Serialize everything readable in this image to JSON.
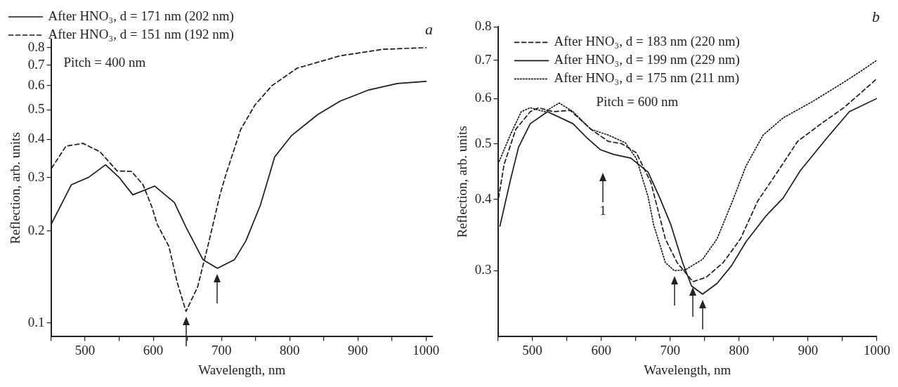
{
  "chart_data": [
    {
      "type": "line",
      "title": "a",
      "xlabel": "Wavelength, nm",
      "ylabel": "Reflection, arb. units",
      "log": "y",
      "xlim": [
        450,
        1010
      ],
      "ylim": [
        0.09,
        0.85
      ],
      "xticks": [
        {
          "value": 450,
          "label": null
        },
        500,
        {
          "value": 550,
          "label": null
        },
        600,
        {
          "value": 650,
          "label": null
        },
        700,
        {
          "value": 750,
          "label": null
        },
        800,
        {
          "value": 850,
          "label": null
        },
        900,
        {
          "value": 950,
          "label": null
        },
        1000
      ],
      "yticks": [
        0.1,
        0.2,
        0.3,
        0.4,
        0.5,
        0.6,
        0.7,
        0.8
      ],
      "legend": "top",
      "marker": "none",
      "annotations": [
        "Pitch = 400 nm"
      ],
      "series": [
        {
          "name": "After HNO₃, d = 171 nm (202 nm)",
          "color": "#1a1a1a",
          "line_style": "solid",
          "x": [
            450,
            480,
            505,
            530,
            550,
            570,
            602,
            631,
            648,
            673,
            694,
            719,
            736,
            757,
            769,
            778,
            803,
            841,
            874,
            916,
            958,
            1000
          ],
          "values": [
            0.21,
            0.284,
            0.3,
            0.33,
            0.3,
            0.263,
            0.281,
            0.248,
            0.206,
            0.161,
            0.151,
            0.161,
            0.186,
            0.243,
            0.299,
            0.35,
            0.412,
            0.482,
            0.534,
            0.581,
            0.61,
            0.62
          ]
        },
        {
          "name": "After HNO₃, d = 151 nm (192 nm)",
          "color": "#1a1a1a",
          "line_style": "dashed",
          "x": [
            451,
            472,
            497,
            522,
            547,
            568,
            585,
            598,
            606,
            623,
            635,
            648,
            665,
            682,
            698,
            707,
            728,
            749,
            774,
            811,
            874,
            937,
            1000
          ],
          "values": [
            0.322,
            0.38,
            0.388,
            0.364,
            0.315,
            0.314,
            0.284,
            0.24,
            0.21,
            0.178,
            0.136,
            0.109,
            0.131,
            0.186,
            0.264,
            0.309,
            0.43,
            0.518,
            0.6,
            0.685,
            0.752,
            0.79,
            0.8
          ]
        }
      ]
    },
    {
      "type": "line",
      "title": "b",
      "xlabel": "Wavelength, nm",
      "ylabel": "Reflection, arb. units",
      "log": "y",
      "xlim": [
        450,
        1000
      ],
      "ylim": [
        0.23,
        0.8
      ],
      "xticks": [
        {
          "value": 450,
          "label": null
        },
        500,
        {
          "value": 550,
          "label": null
        },
        600,
        {
          "value": 650,
          "label": null
        },
        700,
        {
          "value": 750,
          "label": null
        },
        800,
        {
          "value": 850,
          "label": null
        },
        900,
        {
          "value": 950,
          "label": null
        },
        1000
      ],
      "yticks": [
        0.3,
        0.4,
        0.5,
        0.6,
        0.7,
        0.8
      ],
      "legend": "top left",
      "marker": "none",
      "annotations": [
        "Pitch = 600 nm",
        "1"
      ],
      "series": [
        {
          "name": "After HNO₃, d = 183 nm (220 nm)",
          "color": "#1a1a1a",
          "line_style": "dashed",
          "x": [
            451,
            459,
            476,
            497,
            509,
            530,
            555,
            585,
            610,
            630,
            651,
            672,
            693,
            710,
            733,
            752,
            777,
            802,
            827,
            856,
            885,
            919,
            952,
            977,
            1000
          ],
          "values": [
            0.402,
            0.46,
            0.53,
            0.569,
            0.578,
            0.569,
            0.572,
            0.53,
            0.505,
            0.5,
            0.482,
            0.428,
            0.341,
            0.31,
            0.287,
            0.292,
            0.31,
            0.341,
            0.397,
            0.447,
            0.505,
            0.542,
            0.578,
            0.614,
            0.65
          ]
        },
        {
          "name": "After HNO₃, d = 199 nm (229 nm)",
          "color": "#1a1a1a",
          "line_style": "solid",
          "x": [
            453,
            468,
            480,
            497,
            522,
            559,
            580,
            599,
            618,
            643,
            668,
            685,
            701,
            718,
            731,
            747,
            768,
            789,
            810,
            839,
            864,
            889,
            927,
            960,
            1000
          ],
          "values": [
            0.359,
            0.431,
            0.493,
            0.542,
            0.569,
            0.542,
            0.511,
            0.488,
            0.479,
            0.472,
            0.446,
            0.402,
            0.361,
            0.31,
            0.282,
            0.273,
            0.285,
            0.306,
            0.337,
            0.374,
            0.402,
            0.449,
            0.511,
            0.569,
            0.6
          ]
        },
        {
          "name": "After HNO₃, d = 175 nm (211 nm)",
          "color": "#1a1a1a",
          "line_style": "dotted",
          "x": [
            452,
            468,
            484,
            497,
            518,
            539,
            559,
            585,
            610,
            635,
            651,
            668,
            676,
            693,
            706,
            722,
            747,
            768,
            789,
            810,
            835,
            864,
            906,
            948,
            977,
            1000
          ],
          "values": [
            0.466,
            0.518,
            0.569,
            0.578,
            0.569,
            0.589,
            0.569,
            0.53,
            0.518,
            0.502,
            0.471,
            0.404,
            0.361,
            0.31,
            0.3,
            0.301,
            0.314,
            0.341,
            0.393,
            0.457,
            0.518,
            0.555,
            0.592,
            0.636,
            0.67,
            0.7
          ]
        }
      ]
    }
  ]
}
